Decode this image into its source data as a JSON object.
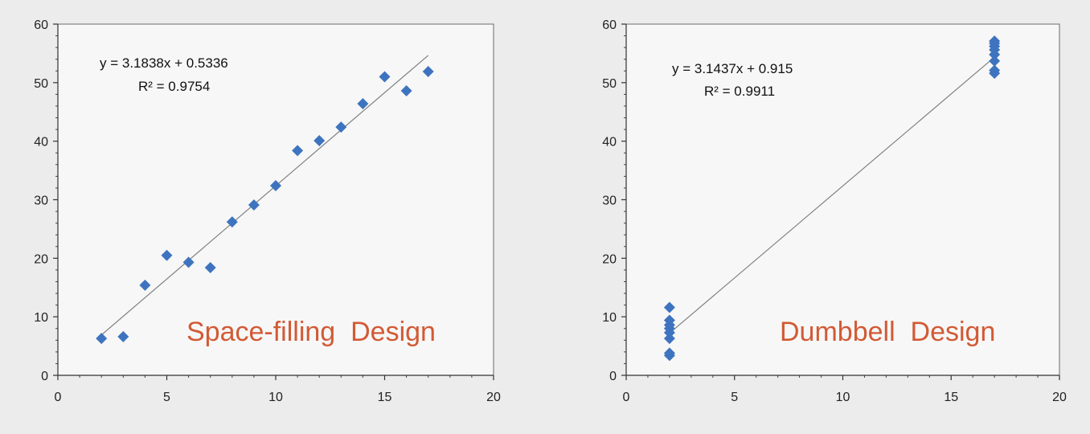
{
  "chart_data": [
    {
      "type": "scatter",
      "xlim": [
        0,
        20
      ],
      "ylim": [
        0,
        60
      ],
      "xticks": [
        0,
        5,
        10,
        15,
        20
      ],
      "yticks": [
        0,
        10,
        20,
        30,
        40,
        50,
        60
      ],
      "grid": false,
      "series": [
        {
          "x": [
            2,
            3,
            4,
            5,
            6,
            7,
            8,
            9,
            10,
            11,
            12,
            13,
            14,
            15,
            16,
            17
          ],
          "y": [
            6.3,
            6.6,
            15.4,
            20.5,
            19.3,
            18.4,
            26.2,
            29.1,
            32.4,
            38.4,
            40.1,
            42.4,
            46.4,
            51.0,
            48.6,
            51.9
          ],
          "color": "#3e74bf"
        }
      ],
      "trendline": {
        "slope": 3.1838,
        "intercept": 0.5336,
        "x_range": [
          2,
          17
        ],
        "color": "#808080"
      },
      "equation_text": "y = 3.1838x + 0.5336",
      "r2_text": "R² = 0.9754",
      "caption": "Space-filling  Design",
      "caption_color": "#d25a35"
    },
    {
      "type": "scatter",
      "xlim": [
        0,
        20
      ],
      "ylim": [
        0,
        60
      ],
      "xticks": [
        0,
        5,
        10,
        15,
        20
      ],
      "yticks": [
        0,
        10,
        20,
        30,
        40,
        50,
        60
      ],
      "grid": false,
      "series": [
        {
          "x": [
            2,
            2,
            2,
            2,
            2,
            2,
            2,
            2,
            17,
            17,
            17,
            17,
            17,
            17,
            17,
            17
          ],
          "y": [
            3.4,
            3.8,
            6.3,
            7.3,
            8.0,
            8.6,
            9.4,
            11.6,
            51.6,
            52.1,
            53.7,
            54.8,
            55.6,
            56.2,
            56.7,
            57.1
          ],
          "color": "#3e74bf"
        }
      ],
      "trendline": {
        "slope": 3.1437,
        "intercept": 0.915,
        "x_range": [
          2,
          17
        ],
        "color": "#808080"
      },
      "equation_text": "y = 3.1437x + 0.915",
      "r2_text": "R² = 0.9911",
      "caption": "Dumbbell  Design",
      "caption_color": "#d25a35"
    }
  ]
}
